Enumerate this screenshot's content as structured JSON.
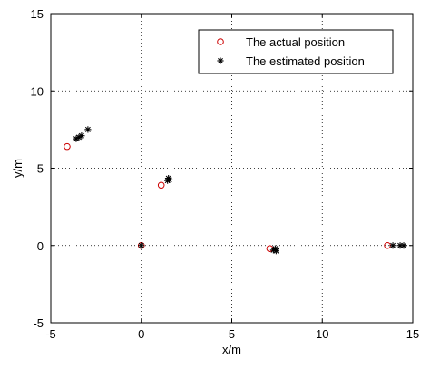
{
  "chart_data": {
    "type": "scatter",
    "title": "",
    "xlabel": "x/m",
    "ylabel": "y/m",
    "xlim": [
      -5,
      15
    ],
    "ylim": [
      -5,
      15
    ],
    "xticks": [
      -5,
      0,
      5,
      10,
      15
    ],
    "yticks": [
      -5,
      0,
      5,
      10,
      15
    ],
    "xtick_labels": [
      "-5",
      "0",
      "5",
      "10",
      "15"
    ],
    "ytick_labels": [
      "-5",
      "0",
      "5",
      "10",
      "15"
    ],
    "grid": true,
    "grid_style": "dotted",
    "legend_position": "top-right",
    "series": [
      {
        "name": "The actual position",
        "marker": "circle-open",
        "color": "#cc0000",
        "points": [
          {
            "x": -4.1,
            "y": 6.4
          },
          {
            "x": 0.0,
            "y": 0.0
          },
          {
            "x": 1.1,
            "y": 3.9
          },
          {
            "x": 7.1,
            "y": -0.2
          },
          {
            "x": 13.6,
            "y": 0.0
          }
        ]
      },
      {
        "name": "The estimated position",
        "marker": "asterisk",
        "color": "#000000",
        "points": [
          {
            "x": -3.6,
            "y": 6.9
          },
          {
            "x": -3.45,
            "y": 7.0
          },
          {
            "x": -3.3,
            "y": 7.1
          },
          {
            "x": -2.95,
            "y": 7.5
          },
          {
            "x": 0.0,
            "y": 0.0
          },
          {
            "x": 1.45,
            "y": 4.2
          },
          {
            "x": 1.5,
            "y": 4.35
          },
          {
            "x": 1.55,
            "y": 4.25
          },
          {
            "x": 7.3,
            "y": -0.3
          },
          {
            "x": 7.4,
            "y": -0.2
          },
          {
            "x": 7.45,
            "y": -0.35
          },
          {
            "x": 13.9,
            "y": 0.0
          },
          {
            "x": 14.3,
            "y": 0.0
          },
          {
            "x": 14.5,
            "y": 0.0
          }
        ]
      }
    ]
  }
}
